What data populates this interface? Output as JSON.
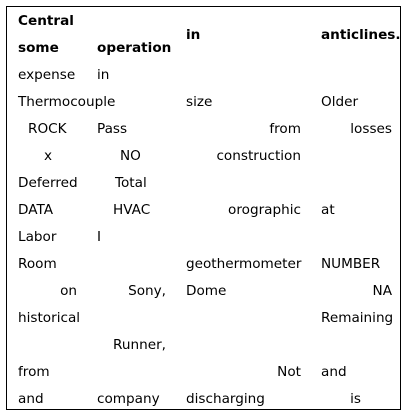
{
  "header": {
    "c1_line1": "Central",
    "c1_line2": "some",
    "c2": "operation",
    "c3": "in",
    "c4": "anticlines."
  },
  "rows": [
    [
      "expense",
      "in",
      "",
      ""
    ],
    [
      "Thermocouple",
      "",
      "size",
      "Older"
    ],
    [
      "ROCK",
      "Pass",
      "from",
      "losses"
    ],
    [
      "x",
      "NO",
      "construction",
      ""
    ],
    [
      "Deferred",
      "Total",
      "",
      ""
    ],
    [
      "DATA",
      "HVAC",
      "orographic",
      "at"
    ],
    [
      "Labor",
      "I",
      "",
      ""
    ],
    [
      "Room",
      "",
      "geothermometer",
      "NUMBER"
    ],
    [
      "on",
      "Sony,",
      "Dome",
      "NA"
    ],
    [
      "historical",
      "",
      "",
      "Remaining"
    ],
    [
      "",
      "Runner,",
      "",
      ""
    ],
    [
      "from",
      "",
      "Not",
      "and"
    ],
    [
      "and",
      "company",
      "discharging",
      "is"
    ]
  ]
}
